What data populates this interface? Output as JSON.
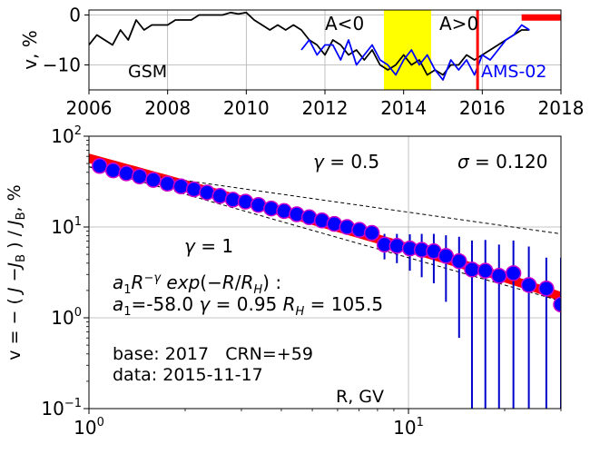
{
  "chart_data": [
    {
      "type": "line",
      "title": "",
      "xlabel": "",
      "ylabel": "v, %",
      "xlim": [
        2006,
        2018
      ],
      "ylim": [
        -15,
        1
      ],
      "xticks": [
        2006,
        2008,
        2010,
        2012,
        2014,
        2016,
        2018
      ],
      "yticks": [
        0,
        -10
      ],
      "grid": true,
      "legend_labels": {
        "gsm": "GSM",
        "ams": "AMS-02"
      },
      "annotations": {
        "a_neg": "A<0",
        "a_pos": "A>0"
      },
      "highlight_span": {
        "x_start": 2013.5,
        "x_end": 2014.7,
        "color": "#ffff00"
      },
      "marker_line": {
        "x": 2015.88,
        "color": "#ff0000"
      },
      "marker_bar": {
        "x_start": 2017.0,
        "x_end": 2018.0,
        "y": -0.5,
        "color": "#ff0000"
      },
      "series": [
        {
          "name": "GSM",
          "color": "#000000",
          "x": [
            2006.0,
            2006.2,
            2006.4,
            2006.6,
            2006.8,
            2007.0,
            2007.2,
            2007.4,
            2007.6,
            2007.8,
            2008.0,
            2008.2,
            2008.4,
            2008.6,
            2008.8,
            2009.0,
            2009.2,
            2009.4,
            2009.6,
            2009.8,
            2010.0,
            2010.2,
            2010.4,
            2010.6,
            2010.8,
            2011.0,
            2011.2,
            2011.4,
            2011.6,
            2011.8,
            2012.0,
            2012.2,
            2012.4,
            2012.6,
            2012.8,
            2013.0,
            2013.2,
            2013.4,
            2013.6,
            2013.8,
            2014.0,
            2014.2,
            2014.4,
            2014.6,
            2014.8,
            2015.0,
            2015.2,
            2015.4,
            2015.6,
            2015.8,
            2016.0,
            2016.2,
            2016.4,
            2016.6,
            2016.8,
            2017.0,
            2017.2
          ],
          "y": [
            -6,
            -4,
            -5,
            -6,
            -3,
            -5,
            -1,
            -3,
            -2,
            -2,
            -2,
            -1,
            -1,
            -1,
            0,
            0,
            0,
            0,
            0.5,
            0.2,
            0.5,
            -1,
            -2,
            -3,
            -2,
            -3,
            -2,
            -3,
            -5,
            -6,
            -8,
            -5,
            -6,
            -8,
            -7,
            -9,
            -7,
            -10,
            -11,
            -10,
            -8,
            -10,
            -9,
            -12,
            -11,
            -12,
            -10,
            -10,
            -8,
            -9,
            -8,
            -7,
            -6,
            -5,
            -4,
            -3,
            -3
          ]
        },
        {
          "name": "AMS-02",
          "color": "#0000ff",
          "x": [
            2011.4,
            2011.6,
            2011.8,
            2012.0,
            2012.2,
            2012.4,
            2012.6,
            2012.8,
            2013.0,
            2013.2,
            2013.4,
            2013.6,
            2013.8,
            2014.0,
            2014.2,
            2014.4,
            2014.6,
            2014.8,
            2015.0,
            2015.2,
            2015.4,
            2015.6,
            2015.8,
            2016.0,
            2016.2,
            2016.4,
            2016.6,
            2016.8,
            2017.0,
            2017.2
          ],
          "y": [
            -7,
            -5,
            -8,
            -6,
            -6,
            -9,
            -5,
            -10,
            -8,
            -6,
            -9,
            -10,
            -12,
            -9,
            -7,
            -10,
            -8,
            -11,
            -13,
            -9,
            -11,
            -9,
            -12,
            -8,
            -9,
            -7,
            -5,
            -4,
            -2,
            -3
          ]
        }
      ]
    },
    {
      "type": "scatter",
      "title": "",
      "xlabel": "R, GV",
      "ylabel": "v = − ( J − J_B ) / J_B, %",
      "xscale": "log",
      "yscale": "log",
      "xlim": [
        1,
        30
      ],
      "ylim": [
        0.1,
        100
      ],
      "grid": true,
      "annotations": {
        "gamma_half": "γ = 0.5",
        "sigma": "σ = 0.120",
        "gamma_one": "γ = 1",
        "formula": "a₁R⁻ᵞ exp(−R/R_H) :",
        "fit_params": "a₁=-58.0  γ = 0.95  R_H = 105.5",
        "base": "base: 2017   CRN=+59",
        "date": "data: 2015-11-17"
      },
      "fit": {
        "a1": -58.0,
        "gamma": 0.95,
        "RH": 105.5,
        "sigma": 0.12,
        "color": "#ff0000"
      },
      "reference_lines": [
        {
          "name": "γ = 0.5",
          "x": [
            1,
            30
          ],
          "y": [
            46,
            8.4
          ]
        },
        {
          "name": "γ = 1",
          "x": [
            1,
            30
          ],
          "y": [
            46,
            1.53
          ]
        }
      ],
      "points": {
        "R": [
          1.08,
          1.19,
          1.31,
          1.44,
          1.59,
          1.76,
          1.94,
          2.13,
          2.34,
          2.57,
          2.82,
          3.09,
          3.39,
          3.72,
          4.08,
          4.47,
          4.89,
          5.36,
          5.86,
          6.42,
          7.02,
          7.68,
          8.41,
          9.2,
          10.1,
          11.0,
          12.0,
          13.1,
          14.4,
          15.8,
          17.4,
          19.2,
          21.3,
          23.8,
          27.0,
          30.0
        ],
        "v": [
          47,
          42,
          39,
          36,
          33,
          30,
          28,
          26,
          24,
          22,
          20,
          19,
          17.5,
          16,
          15,
          13.8,
          12.8,
          11.8,
          10.8,
          10,
          9.3,
          8.6,
          6.4,
          6.2,
          5.8,
          5.6,
          5.4,
          4.8,
          4.2,
          3.4,
          3.3,
          2.9,
          3.1,
          2.3,
          2.1,
          1.4
        ],
        "err": [
          0.8,
          0.6,
          0.6,
          0.5,
          0.5,
          0.5,
          0.5,
          0.4,
          0.4,
          0.4,
          0.4,
          0.4,
          0.4,
          0.4,
          0.4,
          0.4,
          0.4,
          0.4,
          0.5,
          0.5,
          0.6,
          0.6,
          2.0,
          2.2,
          2.5,
          2.8,
          3.0,
          3.3,
          3.6,
          3.7,
          3.9,
          3.5,
          4.0,
          3.8,
          2.5,
          3.2
        ],
        "face_color": "#0000ff",
        "edge_color": "#cc00cc",
        "errorbar_color": "#0000cc"
      }
    }
  ]
}
